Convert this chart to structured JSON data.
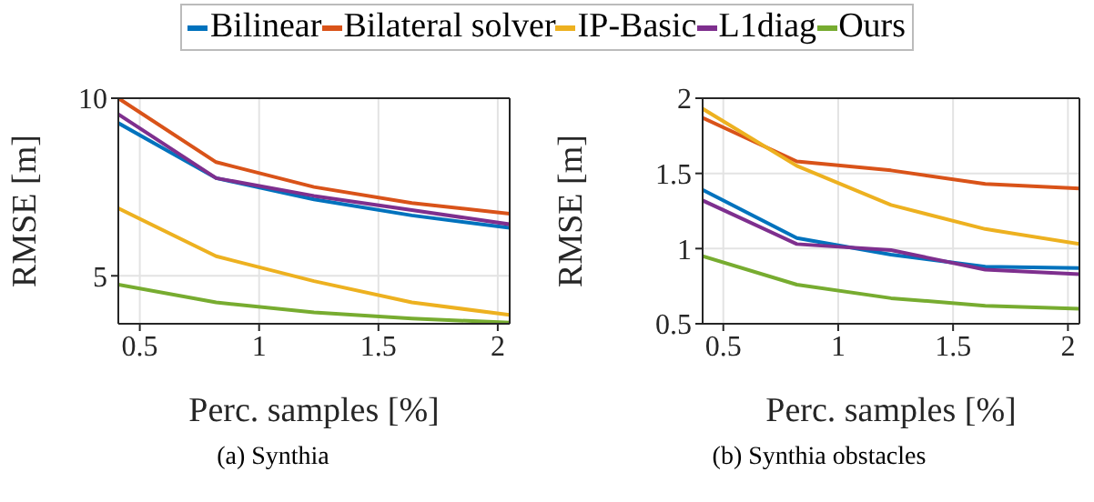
{
  "chart_data": [
    {
      "type": "line",
      "xlabel": "Perc. samples [%]",
      "ylabel": "RMSE [m]",
      "annotations": [
        "(a) Synthia"
      ],
      "x": [
        0.41,
        0.82,
        1.23,
        1.64,
        2.05
      ],
      "xlim": [
        0.41,
        2.05
      ],
      "xticks": [
        0.5,
        1,
        1.5,
        2
      ],
      "ylim": [
        3.65,
        10
      ],
      "yticks": [
        5,
        10
      ],
      "grid": true,
      "legend": "top",
      "marker": "none",
      "line_style": "solid",
      "series": [
        {
          "name": "Bilinear",
          "color": "#0072bd",
          "values": [
            9.3,
            7.75,
            7.15,
            6.7,
            6.35
          ]
        },
        {
          "name": "Bilateral solver",
          "color": "#d95319",
          "values": [
            10.0,
            8.2,
            7.5,
            7.05,
            6.75
          ]
        },
        {
          "name": "IP-Basic",
          "color": "#edb120",
          "values": [
            6.9,
            5.55,
            4.85,
            4.25,
            3.9
          ]
        },
        {
          "name": "L1diag",
          "color": "#7e2f8e",
          "values": [
            9.55,
            7.75,
            7.25,
            6.85,
            6.45
          ]
        },
        {
          "name": "Ours",
          "color": "#77ac30",
          "values": [
            4.75,
            4.25,
            3.97,
            3.8,
            3.68
          ]
        }
      ]
    },
    {
      "type": "line",
      "xlabel": "Perc. samples [%]",
      "ylabel": "RMSE [m]",
      "annotations": [
        "(b) Synthia obstacles"
      ],
      "x": [
        0.41,
        0.82,
        1.23,
        1.64,
        2.05
      ],
      "xlim": [
        0.41,
        2.05
      ],
      "xticks": [
        0.5,
        1,
        1.5,
        2
      ],
      "ylim": [
        0.5,
        2
      ],
      "yticks": [
        0.5,
        1,
        1.5,
        2
      ],
      "grid": true,
      "marker": "none",
      "line_style": "solid",
      "series": [
        {
          "color": "#0072bd",
          "values": [
            1.39,
            1.07,
            0.96,
            0.88,
            0.87
          ]
        },
        {
          "color": "#d95319",
          "values": [
            1.87,
            1.58,
            1.52,
            1.43,
            1.4
          ]
        },
        {
          "color": "#edb120",
          "values": [
            1.93,
            1.55,
            1.29,
            1.13,
            1.03
          ]
        },
        {
          "color": "#7e2f8e",
          "values": [
            1.32,
            1.03,
            0.99,
            0.86,
            0.83
          ]
        },
        {
          "color": "#77ac30",
          "values": [
            0.95,
            0.76,
            0.67,
            0.62,
            0.6
          ]
        }
      ]
    }
  ]
}
